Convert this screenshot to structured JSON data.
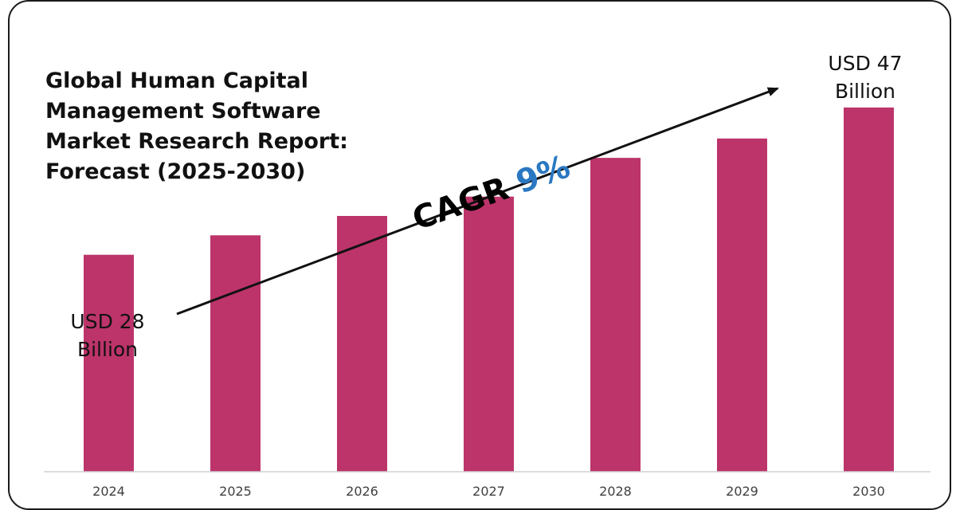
{
  "chart_data": {
    "type": "bar",
    "title": "Global Human Capital Management Software Market Research Report: Forecast (2025-2030)",
    "categories": [
      "2024",
      "2025",
      "2026",
      "2027",
      "2028",
      "2029",
      "2030"
    ],
    "values": [
      28,
      30.5,
      33,
      35.5,
      40.5,
      43,
      47
    ],
    "unit": "USD Billion",
    "ylim": [
      0,
      50
    ],
    "grid": false,
    "bar_color": "#bc346a",
    "annotations": {
      "start": {
        "line1": "USD 28",
        "line2": "Billion"
      },
      "end": {
        "line1": "USD 47",
        "line2": "Billion"
      },
      "cagr_label": "CAGR",
      "cagr_value": "9%"
    }
  }
}
